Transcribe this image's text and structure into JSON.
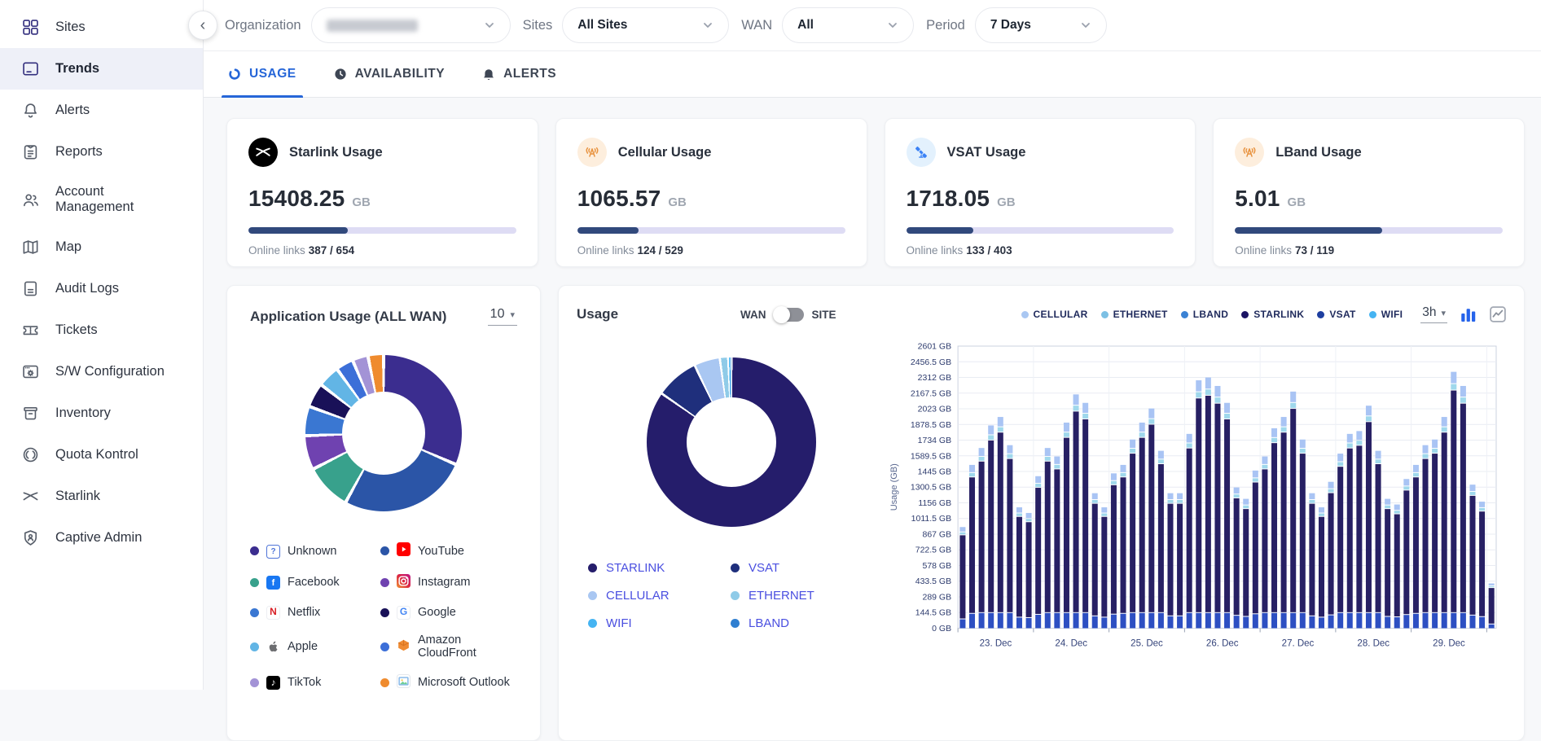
{
  "sidebar": {
    "items": [
      {
        "label": "Sites",
        "icon": "grid",
        "active": false,
        "tint": "navy"
      },
      {
        "label": "Trends",
        "icon": "window",
        "active": true,
        "tint": "navy"
      },
      {
        "label": "Alerts",
        "icon": "bell",
        "active": false
      },
      {
        "label": "Reports",
        "icon": "report",
        "active": false
      },
      {
        "label": "Account Management",
        "icon": "users",
        "active": false
      },
      {
        "label": "Map",
        "icon": "map",
        "active": false
      },
      {
        "label": "Audit Logs",
        "icon": "doc",
        "active": false
      },
      {
        "label": "Tickets",
        "icon": "ticket",
        "active": false
      },
      {
        "label": "S/W Configuration",
        "icon": "swconf",
        "active": false
      },
      {
        "label": "Inventory",
        "icon": "inventory",
        "active": false
      },
      {
        "label": "Quota Kontrol",
        "icon": "quota",
        "active": false
      },
      {
        "label": "Starlink",
        "icon": "starlinkx",
        "active": false
      },
      {
        "label": "Captive Admin",
        "icon": "shield",
        "active": false
      }
    ]
  },
  "topbar": {
    "filters": [
      {
        "label": "Organization",
        "value": "",
        "redacted": true,
        "width": "w-org"
      },
      {
        "label": "Sites",
        "value": "All Sites",
        "redacted": false,
        "width": "w-sites"
      },
      {
        "label": "WAN",
        "value": "All",
        "redacted": false,
        "width": "w-wan"
      },
      {
        "label": "Period",
        "value": "7 Days",
        "redacted": false,
        "width": "w-period"
      }
    ]
  },
  "tabs": [
    {
      "label": "USAGE",
      "icon": "usagering",
      "active": true
    },
    {
      "label": "AVAILABILITY",
      "icon": "clock",
      "active": false
    },
    {
      "label": "ALERTS",
      "icon": "alarm",
      "active": false
    }
  ],
  "stat_cards": {
    "links_label": "Online links",
    "unit": "GB",
    "cards": [
      {
        "title": "Starlink Usage",
        "icon": "starlink-logo",
        "icon_bg": "#000000",
        "icon_color": "#ffffff",
        "value": "15408.25",
        "progress_pct": 37,
        "links": "387 / 654"
      },
      {
        "title": "Cellular Usage",
        "icon": "antenna",
        "icon_bg": "#fdeedd",
        "icon_color": "#e8923e",
        "value": "1065.57",
        "progress_pct": 23,
        "links": "124 / 529"
      },
      {
        "title": "VSAT Usage",
        "icon": "satellite",
        "icon_bg": "#e3f1fd",
        "icon_color": "#3b82f6",
        "value": "1718.05",
        "progress_pct": 25,
        "links": "133 / 403"
      },
      {
        "title": "LBand Usage",
        "icon": "antenna",
        "icon_bg": "#fdeedd",
        "icon_color": "#e8923e",
        "value": "5.01",
        "progress_pct": 55,
        "links": "73 / 119"
      }
    ]
  },
  "app_card": {
    "title": "Application Usage (ALL WAN)",
    "count": "10"
  },
  "usage_card": {
    "title": "Usage",
    "toggle_left": "WAN",
    "toggle_right": "SITE",
    "interval": "3h"
  },
  "chart_data": [
    {
      "id": "application_usage_donut",
      "type": "pie",
      "title": "Application Usage (ALL WAN)",
      "unit": "percent_share_estimated",
      "slices": [
        {
          "label": "Unknown",
          "value": 31.5,
          "color": "#3b2d8f",
          "icon": "unknown"
        },
        {
          "label": "YouTube",
          "value": 26.5,
          "color": "#2b55a7",
          "icon": "youtube"
        },
        {
          "label": "Facebook",
          "value": 9.5,
          "color": "#38a18c",
          "icon": "facebook"
        },
        {
          "label": "Instagram",
          "value": 7.0,
          "color": "#6f42b0",
          "icon": "instagram"
        },
        {
          "label": "Netflix",
          "value": 6.0,
          "color": "#3a77d2",
          "icon": "netflix"
        },
        {
          "label": "Google",
          "value": 5.0,
          "color": "#191158",
          "icon": "google"
        },
        {
          "label": "Apple",
          "value": 4.5,
          "color": "#62b5e5",
          "icon": "apple"
        },
        {
          "label": "Amazon CloudFront",
          "value": 3.6,
          "color": "#3c6fd8",
          "icon": "cloudfront"
        },
        {
          "label": "TikTok",
          "value": 3.2,
          "color": "#a393d6",
          "icon": "tiktok"
        },
        {
          "label": "Microsoft Outlook",
          "value": 3.2,
          "color": "#ef8b2e",
          "icon": "outlook"
        }
      ],
      "legend_columns": [
        [
          "Unknown",
          "Facebook",
          "Netflix",
          "Apple",
          "TikTok"
        ],
        [
          "YouTube",
          "Instagram",
          "Google",
          "Amazon CloudFront",
          "Microsoft Outlook"
        ]
      ]
    },
    {
      "id": "usage_donut",
      "type": "pie",
      "title": "Usage",
      "unit": "percent_share_estimated",
      "slices": [
        {
          "label": "STARLINK",
          "value": 84.7,
          "color": "#251d6b"
        },
        {
          "label": "VSAT",
          "value": 8.2,
          "color": "#1f2f7c"
        },
        {
          "label": "CELLULAR",
          "value": 4.9,
          "color": "#a9c7f2"
        },
        {
          "label": "ETHERNET",
          "value": 1.6,
          "color": "#8fcbe8"
        },
        {
          "label": "WIFI",
          "value": 0.5,
          "color": "#45b4f2"
        },
        {
          "label": "LBAND",
          "value": 0.1,
          "color": "#2f7fd1"
        }
      ],
      "legend_columns": [
        [
          "STARLINK",
          "CELLULAR",
          "WIFI"
        ],
        [
          "VSAT",
          "ETHERNET",
          "LBAND"
        ]
      ]
    },
    {
      "id": "usage_by_time",
      "type": "bar",
      "stacked": true,
      "ylabel": "Usage (GB)",
      "interval": "3h",
      "ylim": [
        0,
        2601
      ],
      "y_ticks_gb": [
        0,
        144.5,
        289,
        433.5,
        578,
        722.5,
        867,
        1011.5,
        1156,
        1300.5,
        1445,
        1589.5,
        1734,
        1878.5,
        2023,
        2167.5,
        2312,
        2456.5,
        2601
      ],
      "x_labels": [
        "23. Dec",
        "24. Dec",
        "25. Dec",
        "26. Dec",
        "27. Dec",
        "28. Dec",
        "29. Dec"
      ],
      "bars_per_day": 8,
      "legend": [
        {
          "label": "CELLULAR",
          "color": "#a9c7f2"
        },
        {
          "label": "ETHERNET",
          "color": "#7cc0e4"
        },
        {
          "label": "LBAND",
          "color": "#3b82d4"
        },
        {
          "label": "STARLINK",
          "color": "#1b1464"
        },
        {
          "label": "VSAT",
          "color": "#1e3fa0"
        },
        {
          "label": "WIFI",
          "color": "#45b4f2"
        }
      ],
      "totals_gb": [
        910,
        1483,
        1639,
        1847,
        1925,
        1665,
        1092,
        1040,
        1379,
        1639,
        1561,
        1873,
        2133,
        2055,
        1222,
        1092,
        1405,
        1483,
        1717,
        1873,
        2003,
        1613,
        1222,
        1222,
        1769,
        2263,
        2289,
        2211,
        2055,
        1275,
        1170,
        1431,
        1561,
        1821,
        1925,
        2159,
        1717,
        1222,
        1092,
        1327,
        1587,
        1769,
        1795,
        2029,
        1613,
        1170,
        1118,
        1353,
        1483,
        1665,
        1717,
        1925,
        2341,
        2211,
        1301,
        1144,
        390
      ],
      "composition": {
        "vsat_share": 0.09,
        "vsat_cap_gb": 140,
        "ethernet_share": 0.022,
        "cellular_share": 0.045
      },
      "series_colors": {
        "vsat": "#2d4fc2",
        "starlink": "#272064",
        "ethernet": "#9fd8ec",
        "cellular": "#a9c4f4"
      }
    }
  ]
}
